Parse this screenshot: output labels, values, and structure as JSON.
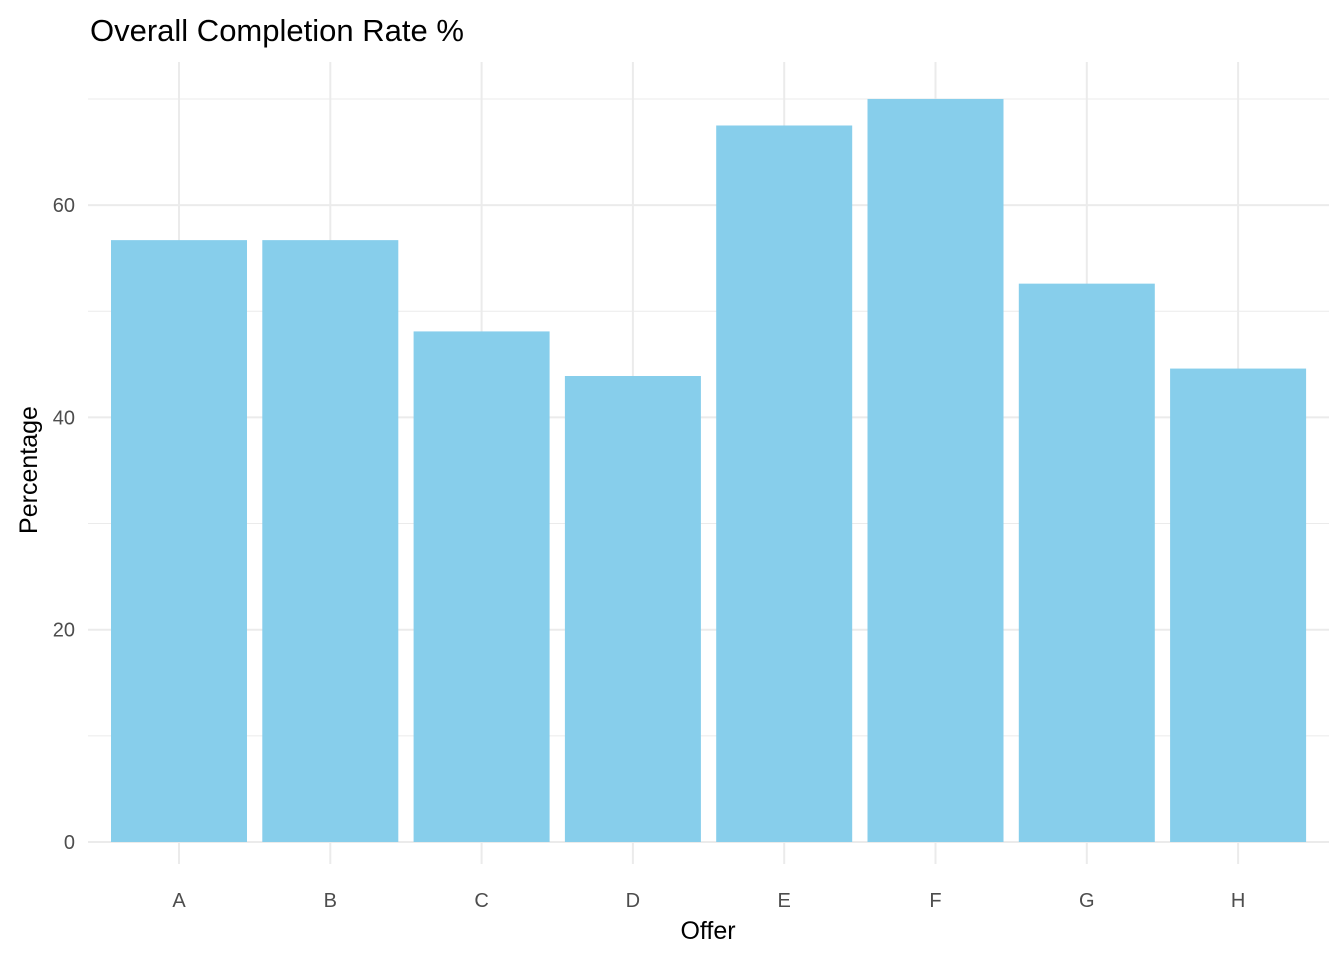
{
  "chart_data": {
    "type": "bar",
    "title": "Overall Completion Rate %",
    "xlabel": "Offer",
    "ylabel": "Percentage",
    "categories": [
      "A",
      "B",
      "C",
      "D",
      "E",
      "F",
      "G",
      "H"
    ],
    "values": [
      56.7,
      56.7,
      48.1,
      43.9,
      67.5,
      70.0,
      52.6,
      44.6
    ],
    "ylim": [
      0,
      73.5
    ],
    "yticks": [
      0,
      20,
      40,
      60
    ],
    "grid": true,
    "legend": "none",
    "bar_color": "#87CEEB",
    "grid_color": "#ebebeb"
  }
}
